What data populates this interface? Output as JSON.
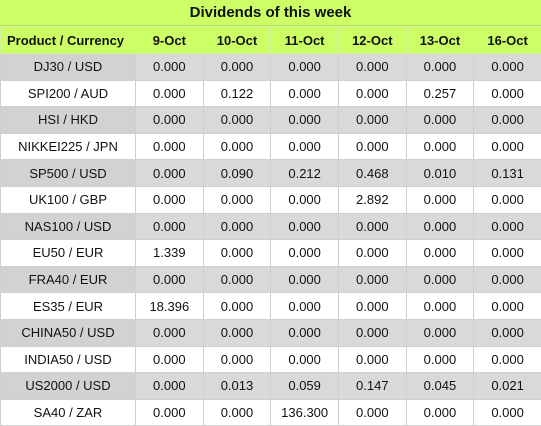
{
  "title": "Dividends of this week",
  "headers": [
    "Product / Currency",
    "9-Oct",
    "10-Oct",
    "11-Oct",
    "12-Oct",
    "13-Oct",
    "16-Oct"
  ],
  "rows": [
    {
      "product": "DJ30 / USD",
      "values": [
        "0.000",
        "0.000",
        "0.000",
        "0.000",
        "0.000",
        "0.000"
      ]
    },
    {
      "product": "SPI200 / AUD",
      "values": [
        "0.000",
        "0.122",
        "0.000",
        "0.000",
        "0.257",
        "0.000"
      ]
    },
    {
      "product": "HSI / HKD",
      "values": [
        "0.000",
        "0.000",
        "0.000",
        "0.000",
        "0.000",
        "0.000"
      ]
    },
    {
      "product": "NIKKEI225 / JPN",
      "values": [
        "0.000",
        "0.000",
        "0.000",
        "0.000",
        "0.000",
        "0.000"
      ]
    },
    {
      "product": "SP500 / USD",
      "values": [
        "0.000",
        "0.090",
        "0.212",
        "0.468",
        "0.010",
        "0.131"
      ]
    },
    {
      "product": "UK100 / GBP",
      "values": [
        "0.000",
        "0.000",
        "0.000",
        "2.892",
        "0.000",
        "0.000"
      ]
    },
    {
      "product": "NAS100 / USD",
      "values": [
        "0.000",
        "0.000",
        "0.000",
        "0.000",
        "0.000",
        "0.000"
      ]
    },
    {
      "product": "EU50 / EUR",
      "values": [
        "1.339",
        "0.000",
        "0.000",
        "0.000",
        "0.000",
        "0.000"
      ]
    },
    {
      "product": "FRA40 / EUR",
      "values": [
        "0.000",
        "0.000",
        "0.000",
        "0.000",
        "0.000",
        "0.000"
      ]
    },
    {
      "product": "ES35 / EUR",
      "values": [
        "18.396",
        "0.000",
        "0.000",
        "0.000",
        "0.000",
        "0.000"
      ]
    },
    {
      "product": "CHINA50 / USD",
      "values": [
        "0.000",
        "0.000",
        "0.000",
        "0.000",
        "0.000",
        "0.000"
      ]
    },
    {
      "product": "INDIA50 / USD",
      "values": [
        "0.000",
        "0.000",
        "0.000",
        "0.000",
        "0.000",
        "0.000"
      ]
    },
    {
      "product": "US2000 / USD",
      "values": [
        "0.000",
        "0.013",
        "0.059",
        "0.147",
        "0.045",
        "0.021"
      ]
    },
    {
      "product": "SA40 / ZAR",
      "values": [
        "0.000",
        "0.000",
        "136.300",
        "0.000",
        "0.000",
        "0.000"
      ]
    }
  ]
}
